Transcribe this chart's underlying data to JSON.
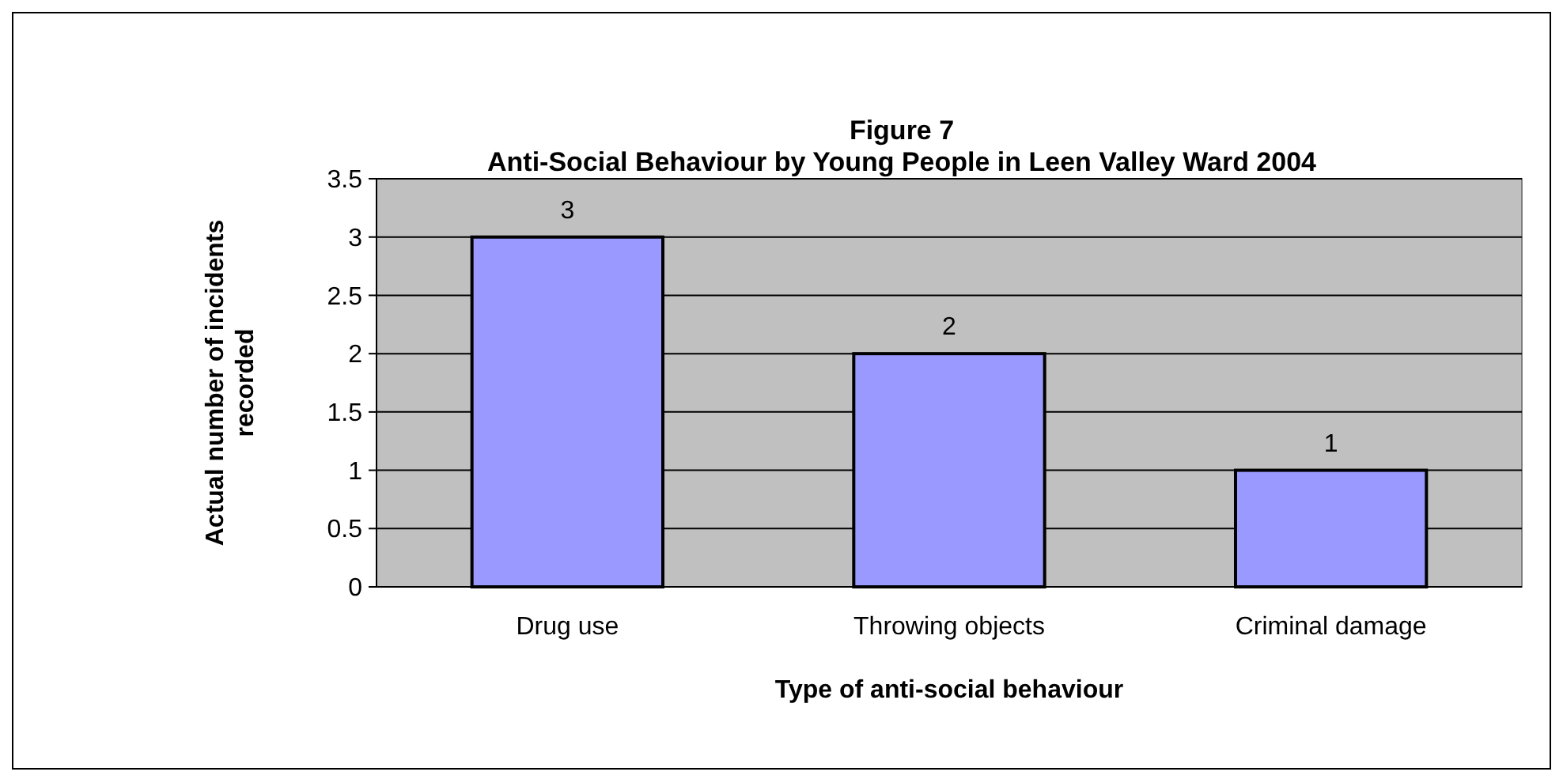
{
  "chart_data": {
    "type": "bar",
    "title": "Figure 7\nAnti-Social Behaviour by Young People in Leen Valley Ward 2004",
    "xlabel": "Type of anti-social behaviour",
    "ylabel": "Actual number of incidents\nrecorded",
    "categories": [
      "Drug use",
      "Throwing objects",
      "Criminal damage"
    ],
    "values": [
      3,
      2,
      1
    ],
    "color": "#9999ff",
    "ylim": [
      0,
      3.5
    ],
    "yticks": [
      0,
      0.5,
      1,
      1.5,
      2,
      2.5,
      3,
      3.5
    ],
    "grid": "y",
    "data_labels": true
  }
}
